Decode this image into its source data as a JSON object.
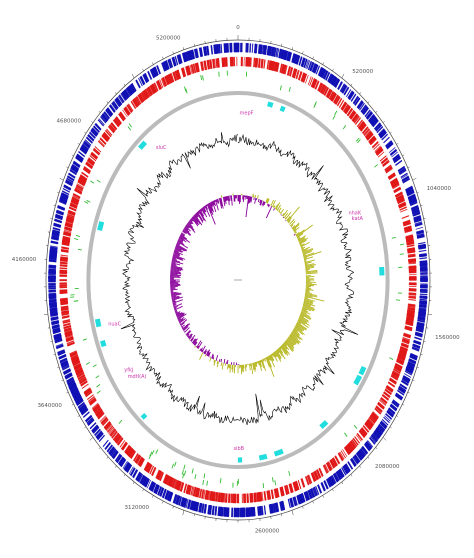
{
  "figure": {
    "type": "circular-genome-map",
    "genome_length": 5450000,
    "position_labels": [
      "0",
      "520000",
      "1040000",
      "1560000",
      "2080000",
      "2600000",
      "3120000",
      "3640000",
      "4160000",
      "4680000",
      "5200000"
    ],
    "colors": {
      "forward_cds": "#1010b4",
      "reverse_cds": "#e01818",
      "rna_features": "#33bb33",
      "gene_islands": "#22dddd",
      "backbone_ring": "#bbbbbb",
      "gc_content": "#000000",
      "gc_skew_positive": "#b5b51c",
      "gc_skew_negative": "#880099",
      "feature_labels": "#cc33aa"
    },
    "tracks": [
      "forward-strand-cds",
      "reverse-strand-cds",
      "rna-features",
      "backbone",
      "gene-islands",
      "gc-content",
      "gc-skew"
    ],
    "gene_labels": [
      {
        "text": "mepF",
        "pos": 55000
      },
      {
        "text": "nhaK",
        "pos": 1005000
      },
      {
        "text": "katA",
        "pos": 1035000
      },
      {
        "text": "sibB",
        "pos": 2720000
      },
      {
        "text": "yfkJ",
        "pos": 3600000
      },
      {
        "text": "mdtI(A)",
        "pos": 3560000
      },
      {
        "text": "nuaC",
        "pos": 3860000
      },
      {
        "text": "sluC",
        "pos": 4880000
      }
    ]
  }
}
